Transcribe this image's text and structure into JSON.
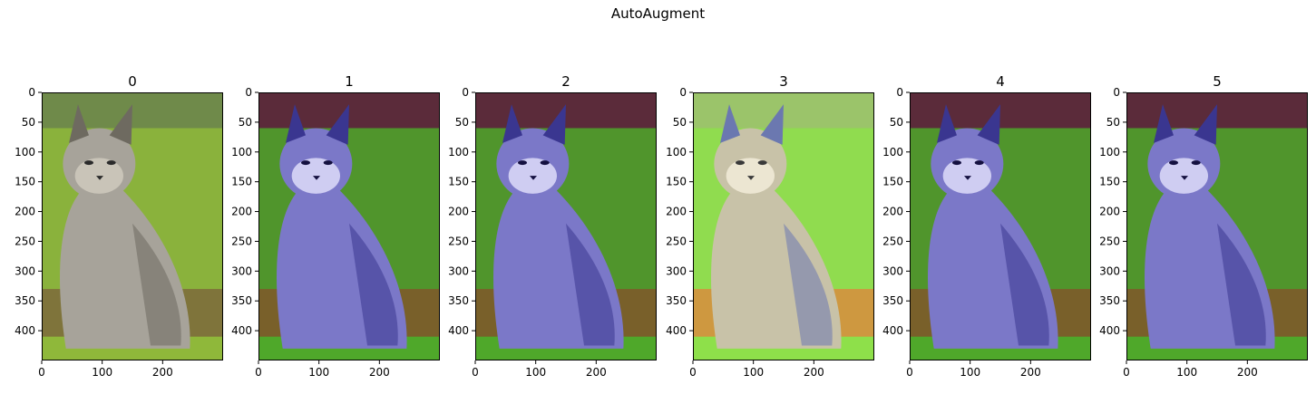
{
  "figure": {
    "suptitle": "AutoAugment"
  },
  "chart_data": {
    "type": "image_grid",
    "title": "AutoAugment",
    "panels": [
      {
        "title": "0",
        "variant": "original"
      },
      {
        "title": "1",
        "variant": "blue-tinted"
      },
      {
        "title": "2",
        "variant": "blue-tinted"
      },
      {
        "title": "3",
        "variant": "solarized"
      },
      {
        "title": "4",
        "variant": "blue-tinted"
      },
      {
        "title": "5",
        "variant": "blue-tinted"
      }
    ],
    "image_width": 300,
    "image_height": 450,
    "xlim": [
      0,
      300
    ],
    "ylim": [
      450,
      0
    ],
    "xticks": [
      0,
      100,
      200
    ],
    "yticks": [
      0,
      50,
      100,
      150,
      200,
      250,
      300,
      350,
      400
    ],
    "xtick_labels": [
      "0",
      "100",
      "200"
    ],
    "ytick_labels": [
      "0",
      "50",
      "100",
      "150",
      "200",
      "250",
      "300",
      "350",
      "400"
    ],
    "palettes": {
      "original": {
        "sky": "#6f8a4a",
        "grass": "#8fb83a",
        "ground": "#7a5a3a",
        "fur": "#a7a39a",
        "fur_dark": "#6e6a60",
        "face": "#c9c4b8",
        "eye": "#2b2b2b"
      },
      "blue-tinted": {
        "sky": "#5b2b3a",
        "grass": "#4fa82a",
        "ground": "#8a4a2a",
        "fur": "#7b78c8",
        "fur_dark": "#3a3690",
        "face": "#cfcdf2",
        "eye": "#141040"
      },
      "solarized": {
        "sky": "#9bc46a",
        "grass": "#8ee04a",
        "ground": "#e87a3a",
        "fur": "#c8c2a8",
        "fur_dark": "#6b78b0",
        "face": "#ece6d2",
        "eye": "#3a3a3a"
      }
    }
  }
}
